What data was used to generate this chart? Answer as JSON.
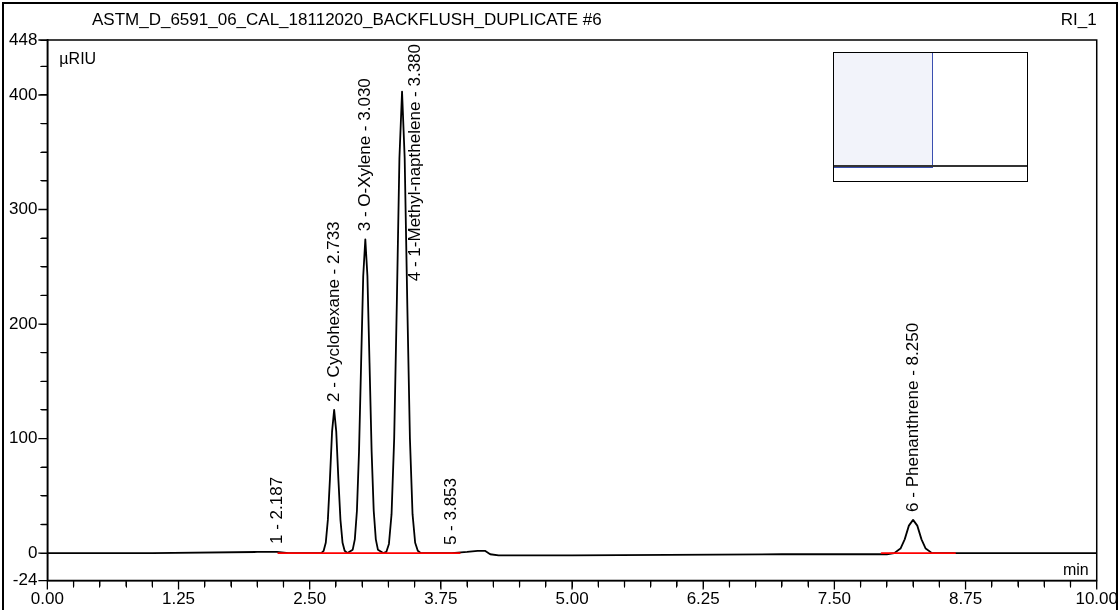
{
  "chart_data": {
    "type": "line",
    "title": "ASTM_D_6591_06_CAL_18112020_BACKFLUSH_DUPLICATE #6",
    "subtitle": "RI_1",
    "xlabel": "min",
    "ylabel": "µRIU",
    "xlim": [
      0,
      10
    ],
    "xticks": [
      {
        "value": 0,
        "label": "0.00"
      },
      {
        "value": 0.25,
        "label": null
      },
      {
        "value": 0.5,
        "label": null
      },
      {
        "value": 0.75,
        "label": null
      },
      {
        "value": 1,
        "label": null
      },
      {
        "value": 1.25,
        "label": "1.25"
      },
      {
        "value": 1.5,
        "label": null
      },
      {
        "value": 1.75,
        "label": null
      },
      {
        "value": 2,
        "label": null
      },
      {
        "value": 2.25,
        "label": null
      },
      {
        "value": 2.5,
        "label": "2.50"
      },
      {
        "value": 2.75,
        "label": null
      },
      {
        "value": 3,
        "label": null
      },
      {
        "value": 3.25,
        "label": null
      },
      {
        "value": 3.5,
        "label": null
      },
      {
        "value": 3.75,
        "label": "3.75"
      },
      {
        "value": 4,
        "label": null
      },
      {
        "value": 4.25,
        "label": null
      },
      {
        "value": 4.5,
        "label": null
      },
      {
        "value": 4.75,
        "label": null
      },
      {
        "value": 5,
        "label": "5.00"
      },
      {
        "value": 5.25,
        "label": null
      },
      {
        "value": 5.5,
        "label": null
      },
      {
        "value": 5.75,
        "label": null
      },
      {
        "value": 6,
        "label": null
      },
      {
        "value": 6.25,
        "label": "6.25"
      },
      {
        "value": 6.5,
        "label": null
      },
      {
        "value": 6.75,
        "label": null
      },
      {
        "value": 7,
        "label": null
      },
      {
        "value": 7.25,
        "label": null
      },
      {
        "value": 7.5,
        "label": "7.50"
      },
      {
        "value": 7.75,
        "label": null
      },
      {
        "value": 8,
        "label": null
      },
      {
        "value": 8.25,
        "label": null
      },
      {
        "value": 8.5,
        "label": null
      },
      {
        "value": 8.75,
        "label": "8.75"
      },
      {
        "value": 9,
        "label": null
      },
      {
        "value": 9.25,
        "label": null
      },
      {
        "value": 9.5,
        "label": null
      },
      {
        "value": 9.75,
        "label": null
      },
      {
        "value": 10,
        "label": "10.00"
      }
    ],
    "ylim": [
      -24,
      448
    ],
    "yticks": [
      -24,
      0,
      {
        "value": 25,
        "label": null
      },
      {
        "value": 50,
        "label": null
      },
      {
        "value": 75,
        "label": null
      },
      100,
      {
        "value": 125,
        "label": null
      },
      {
        "value": 150,
        "label": null
      },
      {
        "value": 175,
        "label": null
      },
      200,
      {
        "value": 225,
        "label": null
      },
      {
        "value": 250,
        "label": null
      },
      {
        "value": 275,
        "label": null
      },
      300,
      {
        "value": 325,
        "label": null
      },
      {
        "value": 350,
        "label": null
      },
      {
        "value": 375,
        "label": null
      },
      400,
      {
        "value": 425,
        "label": null
      },
      448
    ],
    "grid": false,
    "legend": false,
    "marker": "none",
    "line_style": "solid",
    "series": [
      {
        "color": "#000000",
        "x": [
          0,
          1,
          2,
          2.187,
          2.3,
          2.5,
          2.61,
          2.633,
          2.653,
          2.673,
          2.693,
          2.713,
          2.733,
          2.753,
          2.773,
          2.793,
          2.813,
          2.833,
          2.86,
          2.91,
          2.93,
          2.95,
          2.97,
          2.99,
          3.01,
          3.03,
          3.05,
          3.07,
          3.09,
          3.11,
          3.13,
          3.15,
          3.2,
          3.23,
          3.255,
          3.28,
          3.305,
          3.33,
          3.355,
          3.38,
          3.405,
          3.43,
          3.455,
          3.48,
          3.505,
          3.53,
          3.56,
          3.853,
          4,
          4.1,
          4.17,
          4.22,
          4.3,
          5,
          7,
          8,
          8.07,
          8.13,
          8.17,
          8.21,
          8.25,
          8.29,
          8.33,
          8.37,
          8.43,
          8.6,
          10
        ],
        "values": [
          0,
          0,
          1,
          1,
          0,
          0,
          0,
          2,
          9,
          29,
          65,
          106,
          125,
          106,
          65,
          29,
          9,
          2,
          0,
          3,
          12,
          37,
          89,
          166,
          242,
          274,
          242,
          166,
          89,
          37,
          12,
          3,
          0,
          1,
          8,
          34,
          100,
          217,
          345,
          403,
          345,
          217,
          100,
          34,
          9,
          2,
          0,
          0,
          1,
          2,
          2,
          -1,
          -2,
          -2,
          -1,
          -1,
          0,
          4,
          12,
          24,
          29,
          24,
          12,
          4,
          0,
          0,
          0
        ]
      },
      {
        "color": "#ff0000",
        "x": [
          2.2,
          3.93
        ],
        "values": [
          0,
          0
        ]
      },
      {
        "color": "#ff0000",
        "x": [
          7.95,
          8.65
        ],
        "values": [
          0,
          0
        ]
      }
    ],
    "annotations": [
      {
        "text": "1 - 2.187",
        "x": 2.187,
        "y": 1
      },
      {
        "text": "2 - Cyclohexane - 2.733",
        "x": 2.733,
        "y": 125
      },
      {
        "text": "3 - O-Xylene - 3.030",
        "x": 3.03,
        "y": 274
      },
      {
        "text": "4 - 1-Methyl-napthelene - 3.380",
        "x": 3.38,
        "y": 403
      },
      {
        "text": "5 - 3.853",
        "x": 3.853,
        "y": 0
      },
      {
        "text": "6 - Phenanthrene - 8.250",
        "x": 8.25,
        "y": 29
      }
    ]
  }
}
